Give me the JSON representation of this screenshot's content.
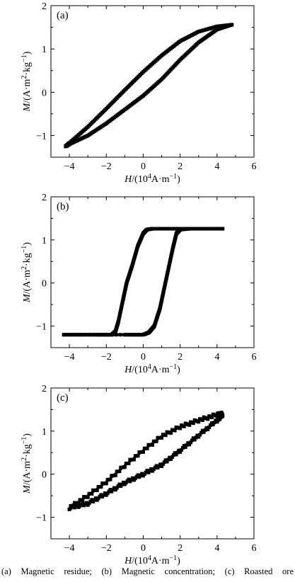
{
  "chart_data": [
    {
      "type": "scatter",
      "panel_label": "(a)",
      "xlim": [
        -5,
        6
      ],
      "ylim": [
        -1.5,
        2
      ],
      "xticks": [
        "-4",
        "-2",
        "0",
        "2",
        "4",
        "6"
      ],
      "yticks": [
        "-1",
        "0",
        "1",
        "2"
      ],
      "xlabel_italic": "H",
      "xlabel_text": "/(10",
      "xlabel_sup": "4",
      "xlabel_tail": "A·m",
      "xlabel_sup2": "−1",
      "xlabel_end": ")",
      "ylabel_italic": "M",
      "ylabel_text": "/(A·m",
      "ylabel_sup": "2",
      "ylabel_mid": "·kg",
      "ylabel_sup2": "−1",
      "ylabel_end": ")",
      "grid": false,
      "series": [
        {
          "x": [
            4.8,
            4.0,
            3.0,
            2.0,
            1.0,
            0.0,
            -1.0,
            -2.0,
            -3.0,
            -4.0,
            -4.2
          ],
          "y": [
            1.56,
            1.52,
            1.4,
            1.18,
            0.85,
            0.47,
            0.05,
            -0.38,
            -0.8,
            -1.17,
            -1.25
          ]
        },
        {
          "x": [
            -4.2,
            -4.0,
            -3.0,
            -2.0,
            -1.0,
            0.0,
            1.0,
            2.0,
            3.0,
            4.0,
            4.8
          ],
          "y": [
            -1.25,
            -1.2,
            -1.0,
            -0.72,
            -0.4,
            -0.08,
            0.3,
            0.75,
            1.15,
            1.45,
            1.56
          ]
        }
      ]
    },
    {
      "type": "scatter",
      "panel_label": "(b)",
      "xlim": [
        -5,
        6
      ],
      "ylim": [
        -1.5,
        2
      ],
      "xticks": [
        "-4",
        "-2",
        "0",
        "2",
        "4",
        "6"
      ],
      "yticks": [
        "-1",
        "0",
        "1",
        "2"
      ],
      "xlabel_italic": "H",
      "xlabel_text": "/(10",
      "xlabel_sup": "4",
      "xlabel_tail": "A·m",
      "xlabel_sup2": "−1",
      "xlabel_end": ")",
      "ylabel_italic": "M",
      "ylabel_text": "/(A·m",
      "ylabel_sup": "2",
      "ylabel_mid": "·kg",
      "ylabel_sup2": "−1",
      "ylabel_end": ")",
      "grid": false,
      "series": [
        {
          "x": [
            4.3,
            2.0,
            0.5,
            0.2,
            0.0,
            -0.3,
            -0.6,
            -0.9,
            -1.1,
            -1.35,
            -1.5,
            -1.7,
            -2.5,
            -4.3
          ],
          "y": [
            1.26,
            1.26,
            1.26,
            1.24,
            1.15,
            0.85,
            0.4,
            0.0,
            -0.4,
            -0.9,
            -1.12,
            -1.2,
            -1.2,
            -1.2
          ]
        },
        {
          "x": [
            -4.3,
            -1.0,
            0.0,
            0.3,
            0.6,
            0.9,
            1.1,
            1.35,
            1.6,
            1.8,
            2.0,
            2.5,
            4.3
          ],
          "y": [
            -1.2,
            -1.2,
            -1.2,
            -1.15,
            -1.0,
            -0.6,
            -0.2,
            0.3,
            0.8,
            1.15,
            1.24,
            1.26,
            1.26
          ]
        }
      ]
    },
    {
      "type": "scatter",
      "panel_label": "(c)",
      "xlim": [
        -5,
        6
      ],
      "ylim": [
        -1.5,
        2
      ],
      "xticks": [
        "-4",
        "-2",
        "0",
        "2",
        "4",
        "6"
      ],
      "yticks": [
        "-1",
        "0",
        "1",
        "2"
      ],
      "xlabel_italic": "H",
      "xlabel_text": "/(10",
      "xlabel_sup": "4",
      "xlabel_tail": "A·m",
      "xlabel_sup2": "−1",
      "xlabel_end": ")",
      "ylabel_italic": "M",
      "ylabel_text": "/(A·m",
      "ylabel_sup": "2",
      "ylabel_mid": "·kg",
      "ylabel_sup2": "−1",
      "ylabel_end": ")",
      "grid": false,
      "series": [
        {
          "x": [
            4.3,
            4.0,
            3.0,
            2.0,
            1.0,
            0.0,
            -1.0,
            -2.0,
            -3.0,
            -4.0
          ],
          "y": [
            1.4,
            1.38,
            1.25,
            1.1,
            0.88,
            0.55,
            0.2,
            -0.18,
            -0.5,
            -0.78
          ]
        },
        {
          "x": [
            -4.0,
            -3.0,
            -2.0,
            -1.0,
            0.0,
            1.0,
            2.0,
            3.0,
            4.0,
            4.3
          ],
          "y": [
            -0.78,
            -0.68,
            -0.45,
            -0.2,
            0.0,
            0.22,
            0.55,
            0.9,
            1.25,
            1.38
          ]
        }
      ]
    }
  ],
  "caption": "(a)  Magnetic  residue;  (b)  Magnetic  concentration; (c) Roasted ore",
  "colors": {
    "ink": "#000000",
    "background": "#ffffff"
  }
}
